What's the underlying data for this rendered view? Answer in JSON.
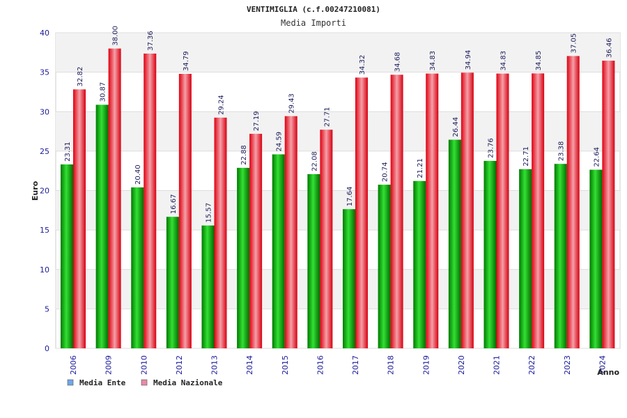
{
  "chart_data": {
    "type": "bar",
    "title": "VENTIMIGLIA (c.f.00247210081)",
    "subtitle": "Media Importi",
    "xlabel": "Anno",
    "ylabel": "Euro",
    "ylim": [
      0,
      40
    ],
    "yticks": [
      "0",
      "5",
      "10",
      "15",
      "20",
      "25",
      "30",
      "35",
      "40"
    ],
    "ytick_values": [
      0,
      5,
      10,
      15,
      20,
      25,
      30,
      35,
      40
    ],
    "categories": [
      "2006",
      "2009",
      "2010",
      "2012",
      "2013",
      "2014",
      "2015",
      "2016",
      "2017",
      "2018",
      "2019",
      "2020",
      "2021",
      "2022",
      "2023",
      "2024"
    ],
    "series": [
      {
        "name": "Media Ente",
        "legend_color": "#6fa8e8",
        "values": [
          23.31,
          30.87,
          20.4,
          16.67,
          15.57,
          22.88,
          24.59,
          22.08,
          17.64,
          20.74,
          21.21,
          26.44,
          23.76,
          22.71,
          23.38,
          22.64
        ],
        "labels": [
          "23.31",
          "30.87",
          "20.40",
          "16.67",
          "15.57",
          "22.88",
          "24.59",
          "22.08",
          "17.64",
          "20.74",
          "21.21",
          "26.44",
          "23.76",
          "22.71",
          "23.38",
          "22.64"
        ]
      },
      {
        "name": "Media Nazionale",
        "legend_color": "#e88aa8",
        "values": [
          32.82,
          38.0,
          37.36,
          34.79,
          29.24,
          27.19,
          29.43,
          27.71,
          34.32,
          34.68,
          34.83,
          34.94,
          34.83,
          34.85,
          37.05,
          36.46
        ],
        "labels": [
          "32.82",
          "38.00",
          "37.36",
          "34.79",
          "29.24",
          "27.19",
          "29.43",
          "27.71",
          "34.32",
          "34.68",
          "34.83",
          "34.94",
          "34.83",
          "34.85",
          "37.05",
          "36.46"
        ]
      }
    ],
    "legend_position": "bottom-left",
    "grid": true
  }
}
